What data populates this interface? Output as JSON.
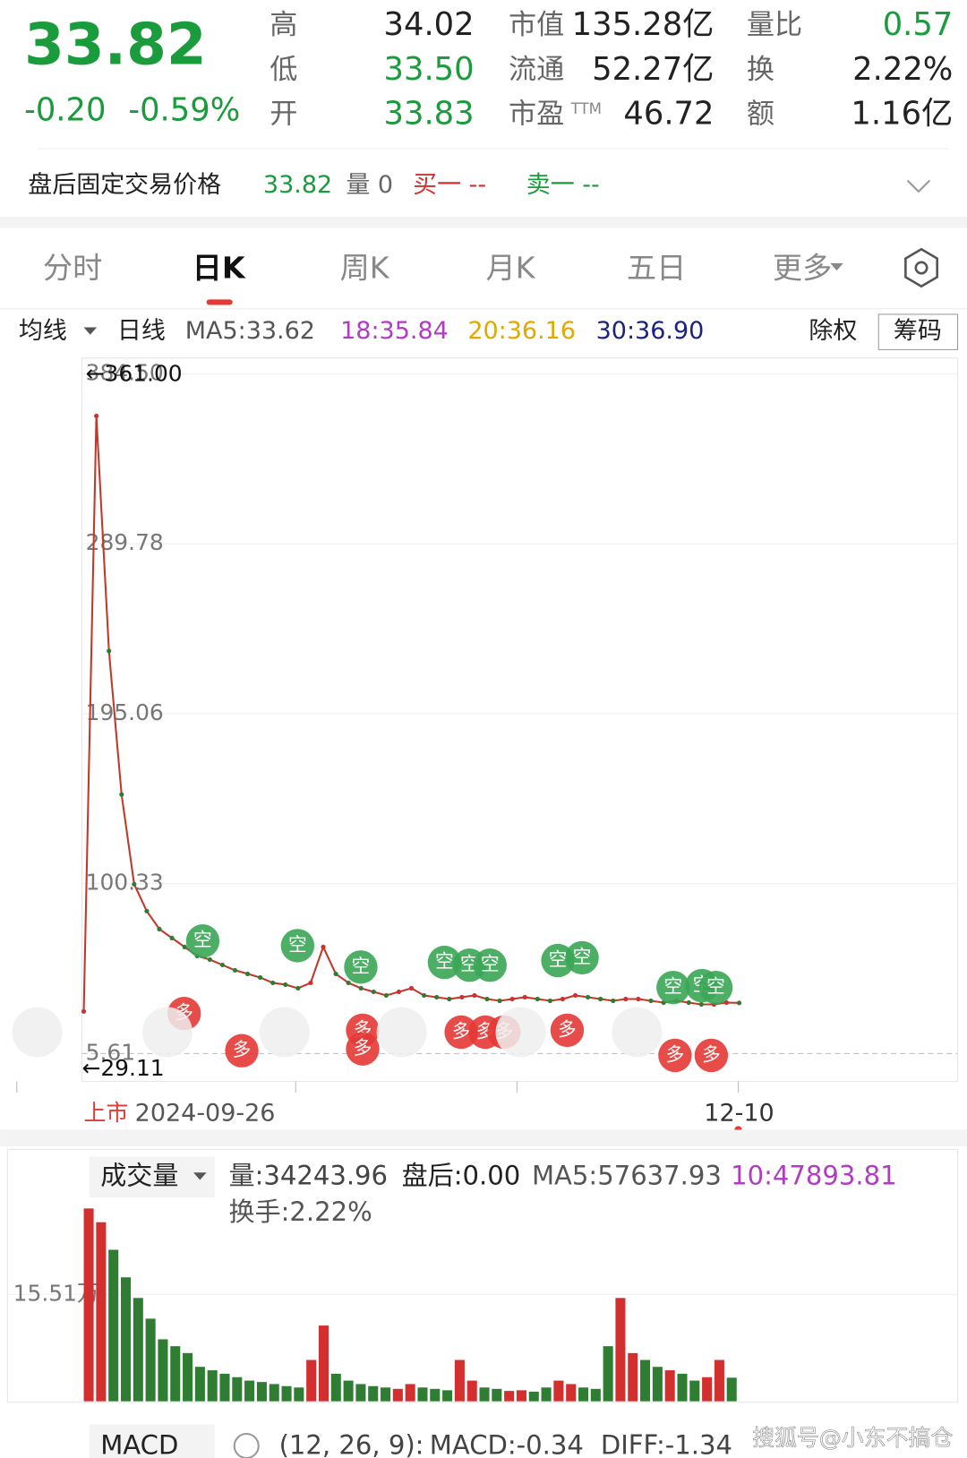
{
  "header": {
    "price": "33.82",
    "change": "-0.20",
    "change_pct": "-0.59%",
    "stats": [
      [
        "高",
        "34.02",
        "市值",
        "135.28亿",
        "量比",
        "0.57"
      ],
      [
        "低",
        "33.50",
        "流通",
        "52.27亿",
        "换",
        "2.22%"
      ],
      [
        "开",
        "33.83",
        "市盈",
        "46.72",
        "额",
        "1.16亿"
      ]
    ],
    "ttm": "TTM"
  },
  "after_hours": {
    "label": "盘后固定交易价格",
    "price": "33.82",
    "volume": "量 0",
    "buy": "买一 --",
    "sell": "卖一 --"
  },
  "tabs": [
    "分时",
    "日K",
    "周K",
    "月K",
    "五日",
    "更多"
  ],
  "ma_bar": {
    "menu": "均线",
    "period": "日线",
    "ma5": "MA5:33.62",
    "ma18": "18:35.84",
    "ma20": "20:36.16",
    "ma30": "30:36.90",
    "adjust": "除权",
    "chips": "筹码"
  },
  "chart_data": [
    {
      "type": "line",
      "color": "#c0392b",
      "grid": true,
      "values": [
        29.11,
        361,
        230,
        150,
        100,
        85,
        75,
        70,
        65,
        60,
        58,
        55,
        52,
        50,
        48,
        45,
        44,
        42,
        45,
        65,
        50,
        45,
        42,
        40,
        38,
        40,
        42,
        38,
        37,
        36,
        37,
        38,
        36,
        35,
        36,
        37,
        36,
        35,
        36,
        38,
        37,
        36,
        35,
        36,
        36,
        35,
        34,
        35,
        34,
        33,
        33,
        34,
        33.82
      ],
      "ylim": [
        5.61,
        384.5
      ],
      "yticks": [
        {
          "value": 384.5,
          "label": "384.50"
        },
        289.78,
        195.06,
        100.33,
        5.61
      ],
      "annotations": [
        "←361.00",
        "←29.11"
      ],
      "x_labels": [
        "上市",
        "2024-09-26",
        "12-10"
      ],
      "signals": [
        "空",
        "多",
        "多",
        "空",
        "空",
        "多",
        "多",
        "空",
        "空",
        "空",
        "多",
        "多",
        "多",
        "空",
        "空",
        "多",
        "空",
        "空",
        "空",
        "多",
        "多"
      ]
    },
    {
      "type": "bar",
      "up_color": "#d32f2f",
      "down_color": "#2e7d32",
      "values": [
        280000,
        260000,
        220000,
        180000,
        150000,
        120000,
        90000,
        80000,
        70000,
        50000,
        45000,
        40000,
        35000,
        30000,
        28000,
        25000,
        22000,
        20000,
        60000,
        110000,
        40000,
        30000,
        25000,
        22000,
        20000,
        18000,
        25000,
        20000,
        18000,
        16000,
        60000,
        30000,
        20000,
        18000,
        15000,
        16000,
        14000,
        20000,
        30000,
        25000,
        20000,
        18000,
        80000,
        150000,
        70000,
        60000,
        50000,
        45000,
        40000,
        30000,
        35000,
        60000,
        34243.96
      ],
      "ylim": [
        0,
        293000
      ],
      "yticks": [
        {
          "value": 155100,
          "label": "15.51万"
        }
      ],
      "header": {
        "menu": "成交量",
        "volume": "量:34243.96",
        "after": "盘后:0.00",
        "ma5": "MA5:57637.93",
        "ma10": "10:47893.81",
        "turnover": "换手:2.22%"
      }
    }
  ],
  "macd": {
    "menu": "MACD",
    "params": "(12, 26, 9):",
    "macd": "MACD:-0.34",
    "diff": "DIFF:-1.34"
  },
  "watermark": "搜狐号@小东不搞仓"
}
